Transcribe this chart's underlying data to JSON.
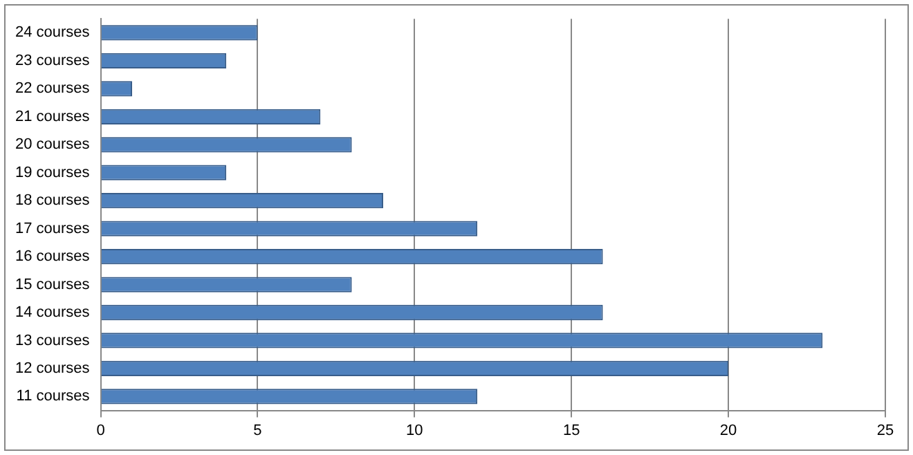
{
  "chart_data": {
    "type": "bar",
    "orientation": "horizontal",
    "categories": [
      "24 courses",
      "23 courses",
      "22 courses",
      "21 courses",
      "20 courses",
      "19 courses",
      "18 courses",
      "17 courses",
      "16 courses",
      "15 courses",
      "14 courses",
      "13 courses",
      "12 courses",
      "11 courses"
    ],
    "values": [
      5,
      4,
      1,
      7,
      8,
      4,
      9,
      12,
      16,
      8,
      16,
      23,
      20,
      12
    ],
    "color": "#4f81bd",
    "xlim": [
      0,
      25
    ],
    "xticks": [
      0,
      5,
      10,
      15,
      20,
      25
    ],
    "grid": "x",
    "legend": false
  }
}
